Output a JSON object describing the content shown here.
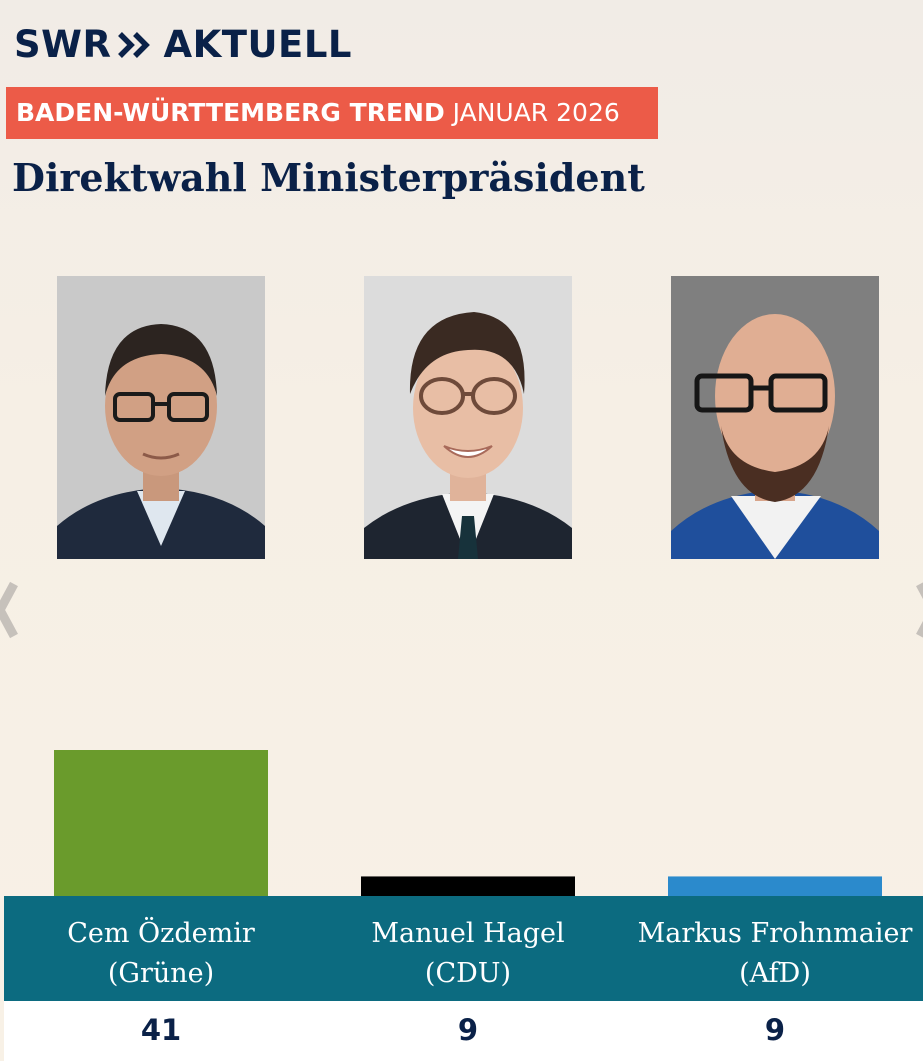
{
  "header": {
    "logo_text_left": "SWR",
    "logo_text_right": "AKTUELL",
    "trend_bold": "BADEN-WÜRTTEMBERG TREND",
    "trend_light": "JANUAR 2026",
    "title": "Direktwahl Ministerpräsident"
  },
  "colors": {
    "navy": "#0a2148",
    "red_banner": "#ec5b48",
    "teal_band": "#0c6b80",
    "gruene": "#6a9b2c",
    "cdu": "#000000",
    "afd": "#2b8acc"
  },
  "chart_data": {
    "type": "bar",
    "title": "Direktwahl Ministerpräsident",
    "categories": [
      "Cem Özdemir (Grüne)",
      "Manuel Hagel (CDU)",
      "Markus Frohnmaier (AfD)"
    ],
    "values": [
      41,
      9,
      9
    ],
    "bar_colors": [
      "#6a9b2c",
      "#000000",
      "#2b8acc"
    ],
    "grid": false,
    "legend": "none"
  },
  "candidates": [
    {
      "name": "Cem Özdemir",
      "party": "(Grüne)",
      "value": "41",
      "photo_icon": "portrait-icon"
    },
    {
      "name": "Manuel Hagel",
      "party": "(CDU)",
      "value": "9",
      "photo_icon": "portrait-icon"
    },
    {
      "name": "Markus Frohnmaier",
      "party": "(AfD)",
      "value": "9",
      "photo_icon": "portrait-icon"
    }
  ]
}
